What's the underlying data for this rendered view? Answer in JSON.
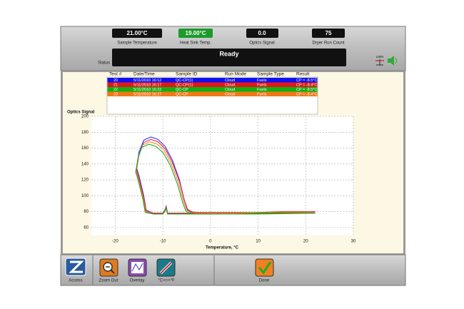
{
  "header": {
    "indicators": [
      {
        "value": "21.00°C",
        "label": "Sample Temperature"
      },
      {
        "value": "19.00°C",
        "label": "Heat Sink Temp."
      },
      {
        "value": "0.0",
        "label": "Optics Signal"
      },
      {
        "value": "75",
        "label": "Dryer Run Count"
      }
    ],
    "status_label": "Status",
    "status": "Ready",
    "lims": "LIMS"
  },
  "table": {
    "columns": [
      "Test #",
      "Date/Time",
      "Sample ID",
      "Run Mode",
      "Sample Type",
      "Result"
    ],
    "row_colors": [
      "#1010f0",
      "#e01818",
      "#10b010",
      "#f07818"
    ],
    "rows": [
      [
        "20",
        "5/11/2010 16:12",
        "QC-CP(1)",
        "Cloud",
        "Fuels",
        "CP = -8.5°C"
      ],
      [
        "21",
        "5/11/2010 16:17",
        "QC-CP(1)",
        "Cloud",
        "Fuels",
        "CP = -8.4°C"
      ],
      [
        "22",
        "5/11/2010 16:22",
        "QC-CP",
        "Cloud",
        "Fuels",
        "CP = -8.5°C"
      ],
      [
        "23",
        "5/11/2010 16:27",
        "QC-CP",
        "Cloud",
        "Fuels",
        "CP = -8.4°C"
      ]
    ]
  },
  "chart_data": {
    "type": "line",
    "y_label": "Optics Signal",
    "x_label": "Temperature, °C",
    "xlim": [
      -25,
      30
    ],
    "ylim": [
      50,
      200
    ],
    "xticks": [
      -20,
      -10,
      0,
      10,
      20,
      30
    ],
    "yticks": [
      60,
      80,
      100,
      120,
      140,
      160,
      180,
      200
    ],
    "grid": true,
    "series": [
      {
        "color": "#2020ff",
        "x": [
          22,
          15,
          10,
          5,
          0,
          -3,
          -4,
          -4.8,
          -5.5,
          -6.5,
          -8,
          -9.5,
          -11,
          -12.5,
          -14,
          -15,
          -15.5,
          -15,
          -14,
          -13.5,
          -12,
          -10,
          -9.6,
          -9.3,
          -9,
          -5,
          0,
          10,
          22
        ],
        "values": [
          79,
          79,
          79,
          78,
          78,
          78,
          79,
          82,
          95,
          120,
          145,
          162,
          171,
          174,
          170,
          155,
          135,
          125,
          100,
          82,
          78,
          78,
          82,
          87,
          78,
          78,
          78,
          78,
          79
        ]
      },
      {
        "color": "#e02020",
        "x": [
          22,
          15,
          10,
          5,
          0,
          -3,
          -4,
          -4.8,
          -5.5,
          -6.5,
          -8,
          -9.5,
          -11,
          -12.5,
          -14,
          -15,
          -15.5,
          -15,
          -14,
          -13.5,
          -12,
          -10,
          -9.6,
          -9.3,
          -9,
          -5,
          0,
          10,
          22
        ],
        "values": [
          80,
          80,
          79,
          79,
          79,
          79,
          80,
          83,
          95,
          118,
          142,
          159,
          168,
          171,
          167,
          152,
          133,
          122,
          98,
          81,
          78,
          78,
          81,
          86,
          78,
          78,
          79,
          79,
          80
        ]
      },
      {
        "color": "#f08020",
        "x": [
          22,
          15,
          10,
          5,
          0,
          -3,
          -4.2,
          -5,
          -5.7,
          -6.7,
          -8.2,
          -9.7,
          -11.2,
          -12.7,
          -14.2,
          -15.1,
          -15.6,
          -15.1,
          -14.1,
          -13.6,
          -12,
          -10,
          -9.6,
          -9.3,
          -9,
          -5,
          0,
          10,
          22
        ],
        "values": [
          79,
          79,
          79,
          78,
          78,
          78,
          79,
          82,
          94,
          116,
          140,
          157,
          165,
          168,
          164,
          150,
          131,
          121,
          97,
          80,
          77,
          77,
          81,
          85,
          77,
          77,
          77,
          78,
          79
        ]
      },
      {
        "color": "#10a010",
        "x": [
          22,
          15,
          10,
          5,
          0,
          -3,
          -4.4,
          -5.2,
          -5.9,
          -6.9,
          -8.4,
          -9.9,
          -11.4,
          -12.9,
          -14.4,
          -15.2,
          -15.7,
          -15.2,
          -14.2,
          -13.7,
          -12,
          -10,
          -9.6,
          -9.3,
          -9,
          -5,
          0,
          10,
          22
        ],
        "values": [
          78,
          78,
          78,
          77,
          77,
          77,
          78,
          81,
          93,
          114,
          138,
          154,
          162,
          165,
          161,
          148,
          130,
          120,
          96,
          79,
          77,
          77,
          80,
          84,
          77,
          77,
          77,
          77,
          78
        ]
      }
    ]
  },
  "toolbar": {
    "buttons": [
      "Access",
      "Zoom Out",
      "Overlay",
      "°C<=>°F",
      "Done"
    ]
  }
}
